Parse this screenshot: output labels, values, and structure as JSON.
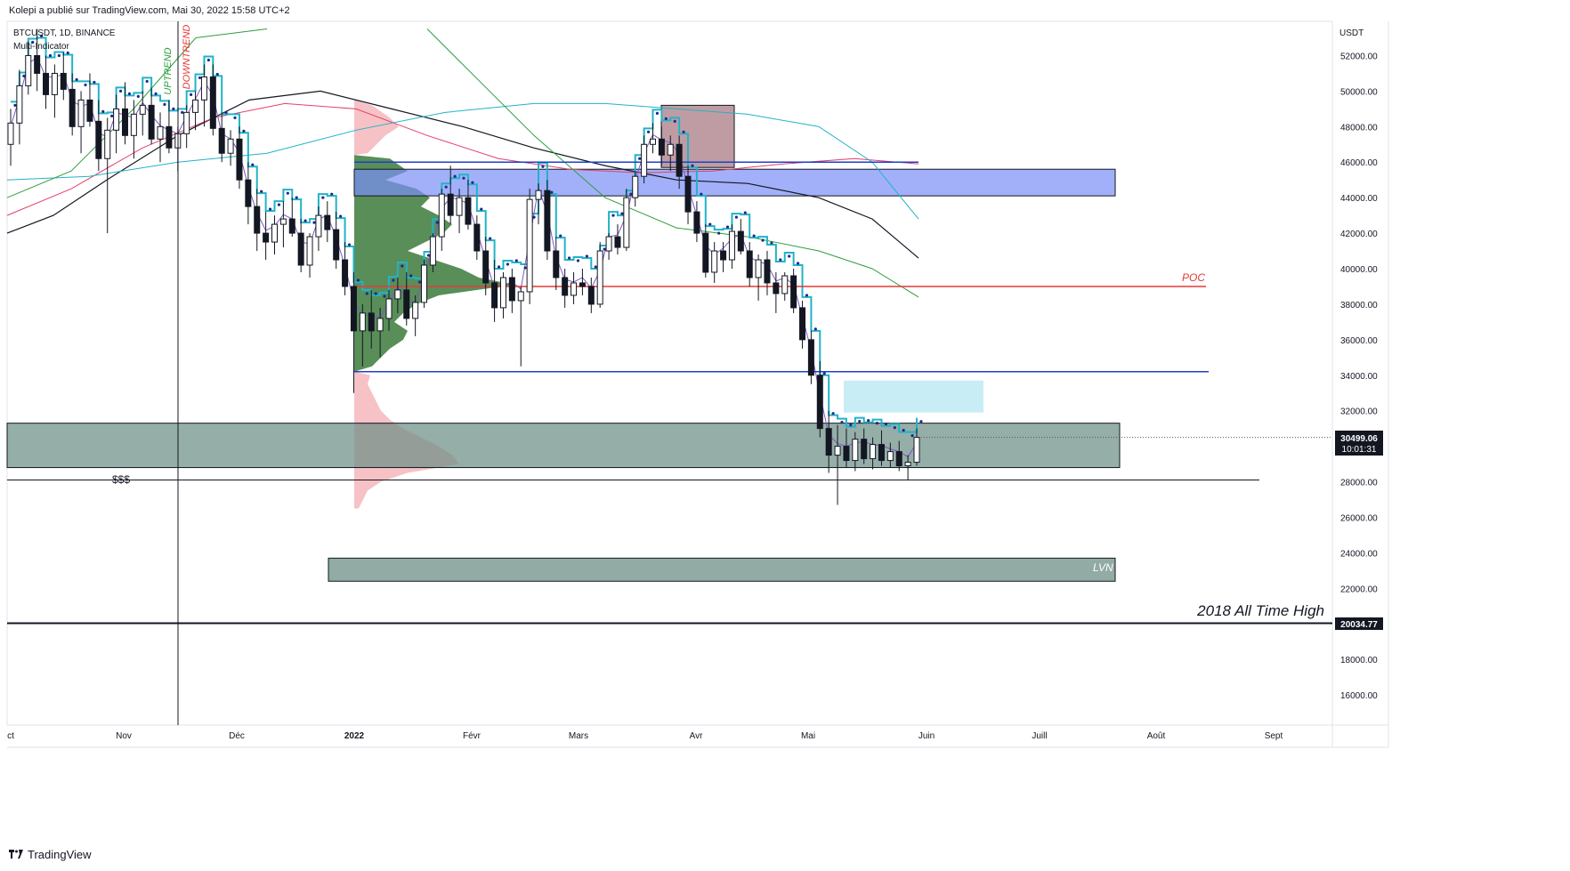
{
  "header": {
    "publisher_line": "Kolepi a publié sur TradingView.com, Mai 30, 2022 15:58 UTC+2"
  },
  "legend": {
    "symbol_line": "BTCUSDT, 1D, BINANCE",
    "indicator_line": "Multi-Indicator"
  },
  "footer": {
    "brand": "TradingView",
    "logo_icon": "tradingview-logo-icon"
  },
  "colors": {
    "candle": "#131722",
    "ema_cyan": "#22b3c7",
    "dots": "#1a2c8a",
    "purple": "#7e57c2",
    "zone_grey": "#6e8f86",
    "zone_blue": "#7a8ef7",
    "zone_pink": "#8b4a57",
    "zone_lightblue": "#bfeaf3",
    "vp_green": "#3c7a3c",
    "vp_pink": "#f2a8ae",
    "poc": "#e53935",
    "level_blue": "#1e40c8",
    "level_black": "#131722"
  },
  "chart_data": {
    "type": "candlestick",
    "symbol": "BTCUSDT",
    "timeframe": "1D",
    "exchange": "BINANCE",
    "y_axis": {
      "unit": "USDT",
      "ticks": [
        "52000.00",
        "50000.00",
        "48000.00",
        "46000.00",
        "44000.00",
        "42000.00",
        "40000.00",
        "38000.00",
        "36000.00",
        "34000.00",
        "32000.00",
        "28000.00",
        "26000.00",
        "24000.00",
        "22000.00",
        "18000.00",
        "16000.00"
      ],
      "ylim": [
        14500,
        54000
      ]
    },
    "x_axis": {
      "ticks": [
        "ct",
        "Nov",
        "Déc",
        "2022",
        "Févr",
        "Mars",
        "Avr",
        "Mai",
        "Juin",
        "Juill",
        "Août",
        "Sept"
      ]
    },
    "price_label": {
      "price": "30499.06",
      "countdown": "10:01:31"
    },
    "ath_label": {
      "value": "20034.77",
      "text": "2018 All Time High"
    },
    "annotations": {
      "poc": "POC",
      "lvn": "LVN",
      "liquidity": "$$$",
      "uptrend": "UPTREND",
      "downtrend": "DOWNTREND"
    },
    "levels": {
      "poc": 39000,
      "blue_support": 34200,
      "black_support": 28100,
      "ath": 20034.77,
      "last": 30499.06
    },
    "zones": {
      "grey_main": [
        28800,
        31300
      ],
      "blue_resistance": [
        44100,
        45600
      ],
      "pink_box": [
        45700,
        49200
      ],
      "lightblue_box": [
        31900,
        33700
      ],
      "lvn": [
        22400,
        23700
      ]
    },
    "candles_ohlc": [
      [
        47000,
        49000,
        45800,
        48200
      ],
      [
        48200,
        51200,
        47000,
        50300
      ],
      [
        50300,
        52800,
        49800,
        52000
      ],
      [
        52000,
        53500,
        50000,
        51000
      ],
      [
        51000,
        52000,
        49000,
        49800
      ],
      [
        49800,
        51500,
        48500,
        51000
      ],
      [
        51000,
        52200,
        49500,
        50100
      ],
      [
        50100,
        51000,
        47500,
        48000
      ],
      [
        48000,
        50000,
        46500,
        49500
      ],
      [
        49500,
        51000,
        48000,
        48300
      ],
      [
        48300,
        49500,
        45500,
        46200
      ],
      [
        46200,
        48500,
        42000,
        47800
      ],
      [
        47800,
        49800,
        46500,
        49000
      ],
      [
        49000,
        50500,
        47000,
        47500
      ],
      [
        47500,
        49500,
        46200,
        48700
      ],
      [
        48700,
        50000,
        47500,
        49200
      ],
      [
        49200,
        50200,
        47000,
        47300
      ],
      [
        47300,
        48800,
        46000,
        48000
      ],
      [
        48000,
        49500,
        46500,
        46800
      ],
      [
        46800,
        48000,
        45500,
        47600
      ],
      [
        47600,
        49200,
        46800,
        48800
      ],
      [
        48800,
        50000,
        47800,
        49500
      ],
      [
        49500,
        51500,
        48000,
        50800
      ],
      [
        50800,
        51500,
        47500,
        47900
      ],
      [
        47900,
        48800,
        46000,
        46500
      ],
      [
        46500,
        47800,
        45800,
        47300
      ],
      [
        47300,
        48000,
        44500,
        45000
      ],
      [
        45000,
        46000,
        42500,
        43500
      ],
      [
        43500,
        44500,
        41000,
        42000
      ],
      [
        42000,
        43200,
        40500,
        41500
      ],
      [
        41500,
        43000,
        40800,
        42500
      ],
      [
        42500,
        43800,
        41200,
        42800
      ],
      [
        42800,
        44000,
        41800,
        42000
      ],
      [
        42000,
        42800,
        39800,
        40200
      ],
      [
        40200,
        42000,
        39500,
        41800
      ],
      [
        41800,
        43500,
        41000,
        43000
      ],
      [
        43000,
        43800,
        41500,
        42200
      ],
      [
        42200,
        43200,
        40000,
        40500
      ],
      [
        40500,
        41500,
        38500,
        39000
      ],
      [
        39000,
        39800,
        33000,
        36500
      ],
      [
        36500,
        38000,
        34500,
        37500
      ],
      [
        37500,
        38800,
        35500,
        36500
      ],
      [
        36500,
        37800,
        35000,
        37200
      ],
      [
        37200,
        38800,
        36500,
        38300
      ],
      [
        38300,
        39500,
        37500,
        38800
      ],
      [
        38800,
        39800,
        36800,
        37200
      ],
      [
        37200,
        38500,
        36200,
        38100
      ],
      [
        38100,
        40500,
        37800,
        40200
      ],
      [
        40200,
        42000,
        39800,
        41800
      ],
      [
        41800,
        44500,
        41000,
        44200
      ],
      [
        44200,
        45800,
        42500,
        43000
      ],
      [
        43000,
        44500,
        42000,
        44000
      ],
      [
        44000,
        45000,
        42200,
        42500
      ],
      [
        42500,
        43000,
        40500,
        41000
      ],
      [
        41000,
        41800,
        38500,
        39200
      ],
      [
        39200,
        40500,
        37000,
        37800
      ],
      [
        37800,
        39800,
        37200,
        39500
      ],
      [
        39500,
        40000,
        37500,
        38200
      ],
      [
        38200,
        39000,
        34500,
        38700
      ],
      [
        38700,
        44500,
        38000,
        43900
      ],
      [
        43900,
        44800,
        42500,
        44400
      ],
      [
        44400,
        45000,
        40500,
        41000
      ],
      [
        41000,
        41800,
        38800,
        39500
      ],
      [
        39500,
        40000,
        37800,
        38500
      ],
      [
        38500,
        39800,
        38000,
        39200
      ],
      [
        39200,
        40000,
        38500,
        39000
      ],
      [
        39000,
        39500,
        37500,
        38000
      ],
      [
        38000,
        41500,
        37800,
        41000
      ],
      [
        41000,
        42000,
        40500,
        41800
      ],
      [
        41800,
        42500,
        40800,
        41200
      ],
      [
        41200,
        44500,
        41000,
        44000
      ],
      [
        44000,
        45500,
        43500,
        45200
      ],
      [
        45200,
        47500,
        44800,
        47000
      ],
      [
        47000,
        48200,
        46500,
        47300
      ],
      [
        47300,
        48000,
        45800,
        46400
      ],
      [
        46400,
        47500,
        45500,
        47000
      ],
      [
        47000,
        47500,
        44500,
        45200
      ],
      [
        45200,
        45800,
        42500,
        43200
      ],
      [
        43200,
        43800,
        41500,
        42000
      ],
      [
        42000,
        42500,
        39500,
        39800
      ],
      [
        39800,
        41500,
        39200,
        41000
      ],
      [
        41000,
        41500,
        39800,
        40500
      ],
      [
        40500,
        42500,
        40000,
        42100
      ],
      [
        42100,
        42800,
        40800,
        41000
      ],
      [
        41000,
        41500,
        39000,
        39500
      ],
      [
        39500,
        40800,
        38200,
        40500
      ],
      [
        40500,
        41000,
        38500,
        39200
      ],
      [
        39200,
        39800,
        37500,
        38600
      ],
      [
        38600,
        39800,
        38200,
        39600
      ],
      [
        39600,
        40000,
        37500,
        37800
      ],
      [
        37800,
        38200,
        35500,
        36000
      ],
      [
        36000,
        36500,
        33500,
        34000
      ],
      [
        34000,
        34800,
        30500,
        31000
      ],
      [
        31000,
        32000,
        28500,
        29500
      ],
      [
        29500,
        31200,
        26700,
        30000
      ],
      [
        30000,
        31000,
        28800,
        29200
      ],
      [
        29200,
        30800,
        28600,
        30400
      ],
      [
        30400,
        31000,
        29000,
        29300
      ],
      [
        29300,
        30500,
        28700,
        30100
      ],
      [
        30100,
        30900,
        28900,
        29200
      ],
      [
        29200,
        30200,
        28800,
        29700
      ],
      [
        29700,
        30300,
        28600,
        28900
      ],
      [
        28900,
        29500,
        28100,
        29100
      ],
      [
        29100,
        31000,
        28900,
        30499
      ]
    ]
  }
}
